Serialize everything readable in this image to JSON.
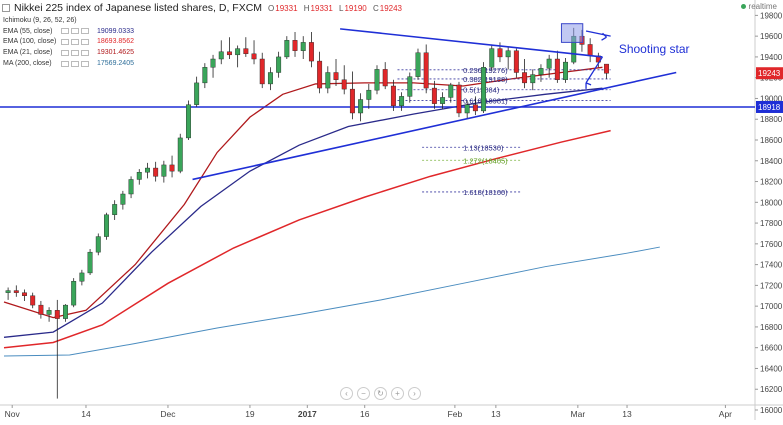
{
  "title": "Nikkei 225 index of Japanese listed shares, D, FXCM",
  "ohlc": {
    "o_label": "O",
    "o": "19331",
    "h_label": "H",
    "h": "19331",
    "l_label": "L",
    "l": "19190",
    "c_label": "C",
    "c": "19243"
  },
  "realtime_label": "realtime",
  "legend": [
    {
      "name": "Ichimoku (9, 26, 52, 26)",
      "value": "",
      "color": "#888888"
    },
    {
      "name": "EMA (55, close)",
      "value": "19099.0333",
      "color": "#2a2a8a"
    },
    {
      "name": "EMA (100, close)",
      "value": "18693.8562",
      "color": "#e0272a"
    },
    {
      "name": "EMA (21, close)",
      "value": "19301.4625",
      "color": "#b0191c"
    },
    {
      "name": "MA (200, close)",
      "value": "17569.2405",
      "color": "#2f6f9a"
    }
  ],
  "nav_buttons": [
    "‹",
    "−",
    "↻",
    "+",
    "›"
  ],
  "annotation": "Shooting star",
  "colors": {
    "bull": "#3aa55a",
    "bear": "#e0272a",
    "trend": "#1f2fd6",
    "ema21": "#b0191c",
    "ema55": "#2a2a8a",
    "ema100": "#e0272a",
    "ma200": "#4a8cbf"
  },
  "chart_data": {
    "type": "candlestick",
    "title": "Nikkei 225 index of Japanese listed shares, D, FXCM",
    "ylim": [
      16000,
      19900
    ],
    "y_ticks": [
      16000,
      16200,
      16400,
      16600,
      16800,
      17000,
      17200,
      17400,
      17600,
      17800,
      18000,
      18200,
      18400,
      18600,
      18800,
      19000,
      19200,
      19400,
      19600,
      19800
    ],
    "x_ticks": [
      {
        "label": "Nov",
        "index": 1
      },
      {
        "label": "14",
        "index": 10
      },
      {
        "label": "Dec",
        "index": 20
      },
      {
        "label": "19",
        "index": 30
      },
      {
        "label": "2017",
        "index": 37
      },
      {
        "label": "16",
        "index": 44
      },
      {
        "label": "Feb",
        "index": 55
      },
      {
        "label": "13",
        "index": 60
      },
      {
        "label": "Mar",
        "index": 70
      },
      {
        "label": "13",
        "index": 76
      },
      {
        "label": "Apr",
        "index": 88
      }
    ],
    "x_range": [
      0,
      91
    ],
    "candles": [
      [
        17130,
        17180,
        17060,
        17150
      ],
      [
        17150,
        17200,
        17090,
        17130
      ],
      [
        17130,
        17160,
        17050,
        17100
      ],
      [
        17100,
        17130,
        16980,
        17010
      ],
      [
        17010,
        17050,
        16880,
        16920
      ],
      [
        16920,
        16990,
        16850,
        16960
      ],
      [
        16960,
        17060,
        16110,
        16880
      ],
      [
        16880,
        17020,
        16850,
        17010
      ],
      [
        17010,
        17270,
        16990,
        17240
      ],
      [
        17240,
        17350,
        17200,
        17320
      ],
      [
        17320,
        17550,
        17300,
        17520
      ],
      [
        17520,
        17700,
        17490,
        17670
      ],
      [
        17670,
        17900,
        17640,
        17880
      ],
      [
        17880,
        18020,
        17830,
        17980
      ],
      [
        17980,
        18110,
        17930,
        18080
      ],
      [
        18080,
        18250,
        18040,
        18220
      ],
      [
        18220,
        18320,
        18170,
        18290
      ],
      [
        18290,
        18380,
        18230,
        18330
      ],
      [
        18330,
        18390,
        18200,
        18250
      ],
      [
        18250,
        18400,
        18190,
        18360
      ],
      [
        18360,
        18450,
        18240,
        18300
      ],
      [
        18300,
        18660,
        18280,
        18620
      ],
      [
        18620,
        18980,
        18600,
        18940
      ],
      [
        18940,
        19210,
        18920,
        19150
      ],
      [
        19150,
        19340,
        19100,
        19300
      ],
      [
        19300,
        19420,
        19200,
        19380
      ],
      [
        19380,
        19560,
        19330,
        19450
      ],
      [
        19450,
        19590,
        19380,
        19420
      ],
      [
        19420,
        19510,
        19300,
        19480
      ],
      [
        19480,
        19590,
        19400,
        19430
      ],
      [
        19430,
        19560,
        19330,
        19380
      ],
      [
        19380,
        19440,
        19100,
        19140
      ],
      [
        19140,
        19300,
        19080,
        19250
      ],
      [
        19250,
        19450,
        19200,
        19400
      ],
      [
        19400,
        19600,
        19380,
        19560
      ],
      [
        19560,
        19640,
        19400,
        19460
      ],
      [
        19460,
        19600,
        19380,
        19540
      ],
      [
        19540,
        19640,
        19300,
        19360
      ],
      [
        19360,
        19450,
        19050,
        19100
      ],
      [
        19100,
        19310,
        19050,
        19250
      ],
      [
        19250,
        19380,
        19120,
        19180
      ],
      [
        19180,
        19320,
        19040,
        19090
      ],
      [
        19090,
        19260,
        18800,
        18860
      ],
      [
        18860,
        19050,
        18780,
        18990
      ],
      [
        18990,
        19140,
        18900,
        19080
      ],
      [
        19080,
        19320,
        19040,
        19280
      ],
      [
        19280,
        19350,
        19090,
        19120
      ],
      [
        19120,
        19180,
        18880,
        18930
      ],
      [
        18930,
        19060,
        18880,
        19020
      ],
      [
        19020,
        19250,
        18960,
        19210
      ],
      [
        19210,
        19480,
        19180,
        19440
      ],
      [
        19440,
        19520,
        19050,
        19100
      ],
      [
        19100,
        19170,
        18900,
        18950
      ],
      [
        18950,
        19060,
        18900,
        19010
      ],
      [
        19010,
        19150,
        18960,
        19130
      ],
      [
        19130,
        19160,
        18820,
        18860
      ],
      [
        18860,
        18980,
        18800,
        18940
      ],
      [
        18940,
        19020,
        18840,
        18880
      ],
      [
        18880,
        19350,
        18860,
        19300
      ],
      [
        19300,
        19520,
        19270,
        19480
      ],
      [
        19480,
        19540,
        19350,
        19400
      ],
      [
        19400,
        19500,
        19280,
        19460
      ],
      [
        19460,
        19480,
        19200,
        19250
      ],
      [
        19250,
        19380,
        19100,
        19150
      ],
      [
        19150,
        19280,
        19080,
        19230
      ],
      [
        19230,
        19330,
        19160,
        19290
      ],
      [
        19290,
        19420,
        19200,
        19380
      ],
      [
        19380,
        19460,
        19150,
        19180
      ],
      [
        19180,
        19390,
        19150,
        19350
      ],
      [
        19350,
        19680,
        19330,
        19600
      ],
      [
        19600,
        19660,
        19450,
        19520
      ],
      [
        19520,
        19580,
        19350,
        19410
      ],
      [
        19410,
        19440,
        19300,
        19350
      ],
      [
        19331,
        19331,
        19190,
        19243
      ]
    ],
    "ema21": [
      [
        0,
        17040
      ],
      [
        6,
        16890
      ],
      [
        10,
        16960
      ],
      [
        16,
        17400
      ],
      [
        22,
        17980
      ],
      [
        26,
        18480
      ],
      [
        30,
        18820
      ],
      [
        34,
        19040
      ],
      [
        38,
        19140
      ],
      [
        44,
        19150
      ],
      [
        50,
        19150
      ],
      [
        56,
        19120
      ],
      [
        62,
        19190
      ],
      [
        68,
        19250
      ],
      [
        73,
        19300
      ]
    ],
    "ema55": [
      [
        0,
        16700
      ],
      [
        6,
        16750
      ],
      [
        12,
        17030
      ],
      [
        18,
        17520
      ],
      [
        24,
        17960
      ],
      [
        30,
        18300
      ],
      [
        36,
        18550
      ],
      [
        42,
        18730
      ],
      [
        50,
        18850
      ],
      [
        58,
        18960
      ],
      [
        66,
        19040
      ],
      [
        73,
        19099
      ]
    ],
    "ema100": [
      [
        0,
        16600
      ],
      [
        6,
        16650
      ],
      [
        12,
        16820
      ],
      [
        20,
        17220
      ],
      [
        28,
        17560
      ],
      [
        36,
        17830
      ],
      [
        44,
        18050
      ],
      [
        52,
        18250
      ],
      [
        60,
        18420
      ],
      [
        68,
        18580
      ],
      [
        74,
        18690
      ]
    ],
    "ma200": [
      [
        0,
        16520
      ],
      [
        8,
        16530
      ],
      [
        16,
        16640
      ],
      [
        26,
        16790
      ],
      [
        36,
        16920
      ],
      [
        46,
        17060
      ],
      [
        56,
        17220
      ],
      [
        66,
        17380
      ],
      [
        76,
        17510
      ],
      [
        80,
        17569
      ]
    ],
    "trend_lines": [
      {
        "from": [
          23,
          18220
        ],
        "to": [
          82,
          19250
        ]
      },
      {
        "from": [
          41,
          19670
        ],
        "to": [
          73,
          19400
        ]
      }
    ],
    "horizontal_line": 18918,
    "horizontal_label": "18918",
    "price_label": "19243",
    "fibonacci": [
      {
        "label": "0.236(19276)",
        "value": 19276
      },
      {
        "label": "0.382(19188)",
        "value": 19188
      },
      {
        "label": "0.5(19084)",
        "value": 19084
      },
      {
        "label": "0.618(18981)",
        "value": 18981
      },
      {
        "label": "1.13(18530)",
        "value": 18530
      },
      {
        "label": "1.272(18405)",
        "value": 18405
      },
      {
        "label": "1.618(18100)",
        "value": 18100
      }
    ]
  }
}
